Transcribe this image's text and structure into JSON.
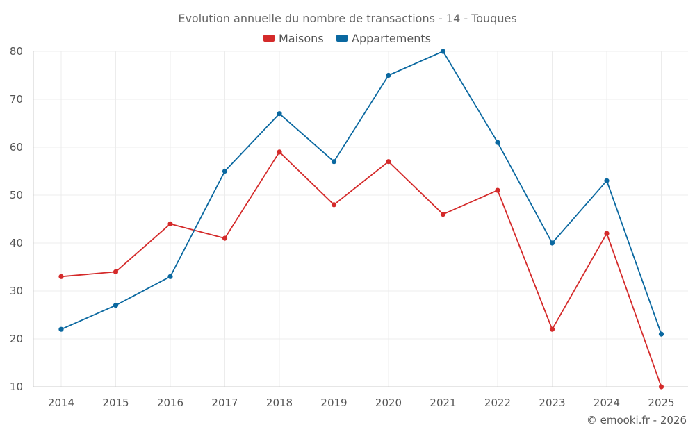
{
  "chart_data": {
    "type": "line",
    "title": "Evolution annuelle du nombre de transactions - 14 - Touques",
    "categories": [
      "2014",
      "2015",
      "2016",
      "2017",
      "2018",
      "2019",
      "2020",
      "2021",
      "2022",
      "2023",
      "2024",
      "2025"
    ],
    "series": [
      {
        "name": "Maisons",
        "color": "#d42a2a",
        "values": [
          33,
          34,
          44,
          41,
          59,
          48,
          57,
          46,
          51,
          22,
          42,
          10
        ]
      },
      {
        "name": "Appartements",
        "color": "#0a68a0",
        "values": [
          22,
          27,
          33,
          55,
          67,
          57,
          75,
          80,
          61,
          40,
          53,
          21
        ]
      }
    ],
    "ylim": [
      10,
      80
    ],
    "yticks": [
      10,
      20,
      30,
      40,
      50,
      60,
      70,
      80
    ],
    "xlabel": "",
    "ylabel": "",
    "grid": true,
    "legend_position": "top-center"
  },
  "credit": "© emooki.fr - 2026"
}
